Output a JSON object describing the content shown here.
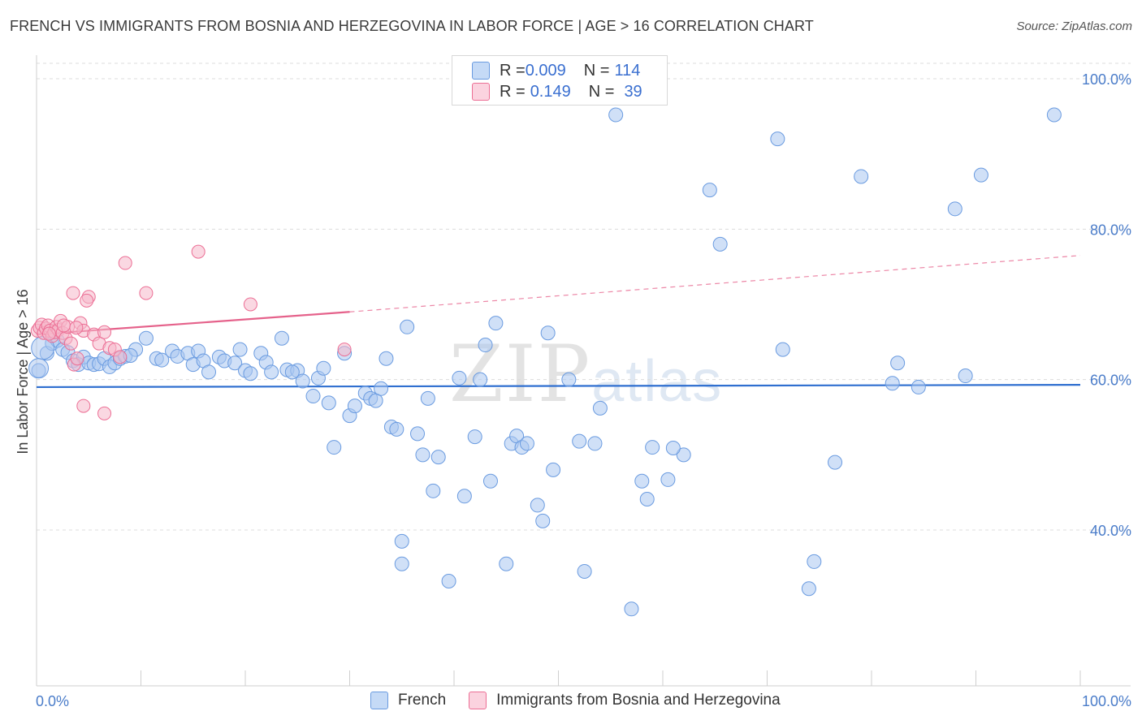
{
  "header": {
    "title": "FRENCH VS IMMIGRANTS FROM BOSNIA AND HERZEGOVINA IN LABOR FORCE | AGE > 16 CORRELATION CHART",
    "source": "Source: ZipAtlas.com"
  },
  "legend": {
    "rows": [
      {
        "r_label": "R = ",
        "r_value": "0.009",
        "n_label": "N = ",
        "n_value": "114",
        "color": "#a9c6f0"
      },
      {
        "r_label": "R = ",
        "r_value": "0.149",
        "n_label": "N = ",
        "n_value": "39",
        "color": "#f5b8cb"
      }
    ]
  },
  "bottom_legend": {
    "items": [
      {
        "label": "French",
        "color": "#a9c6f0"
      },
      {
        "label": "Immigrants from Bosnia and Herzegovina",
        "color": "#f5b8cb"
      }
    ]
  },
  "watermark": {
    "zip": "ZIP",
    "atlas": "atlas"
  },
  "chart_data": {
    "type": "scatter",
    "ylabel": "In Labor Force | Age > 16",
    "xlabel": "",
    "xlim": [
      0,
      100
    ],
    "ylim": [
      20,
      100
    ],
    "x_tick_labels": [
      "0.0%",
      "100.0%"
    ],
    "y_ticks": [
      40,
      60,
      80,
      100
    ],
    "y_tick_labels": [
      "40.0%",
      "60.0%",
      "80.0%",
      "100.0%"
    ],
    "grid": true,
    "colors": {
      "french": "#6a9be0",
      "french_fill": "#a9c6f0",
      "bosnia": "#ec6f95",
      "bosnia_fill": "#f5b8cb",
      "axis_text": "#4a7cc9"
    },
    "series": [
      {
        "name": "French",
        "trend": {
          "x0": 0,
          "y0": 59.0,
          "x1": 100,
          "y1": 59.3
        },
        "points": [
          [
            0.2,
            61.2
          ],
          [
            1.0,
            63.5
          ],
          [
            1.5,
            64.8
          ],
          [
            2.0,
            65.2
          ],
          [
            2.5,
            64.0
          ],
          [
            3.0,
            63.6
          ],
          [
            3.5,
            62.5
          ],
          [
            4.0,
            62.0
          ],
          [
            4.5,
            63.0
          ],
          [
            5.0,
            62.2
          ],
          [
            5.5,
            62.0
          ],
          [
            6.0,
            62.1
          ],
          [
            6.5,
            62.8
          ],
          [
            7.0,
            61.7
          ],
          [
            7.5,
            62.2
          ],
          [
            8.0,
            62.8
          ],
          [
            8.5,
            63.1
          ],
          [
            9.5,
            64.0
          ],
          [
            10.5,
            65.5
          ],
          [
            9.0,
            63.2
          ],
          [
            11.5,
            62.8
          ],
          [
            12.0,
            62.6
          ],
          [
            13.0,
            63.8
          ],
          [
            13.5,
            63.1
          ],
          [
            14.5,
            63.5
          ],
          [
            15.0,
            62.0
          ],
          [
            15.5,
            63.8
          ],
          [
            16.0,
            62.5
          ],
          [
            16.5,
            61.0
          ],
          [
            17.5,
            63.0
          ],
          [
            18.0,
            62.5
          ],
          [
            19.0,
            62.2
          ],
          [
            19.5,
            64.0
          ],
          [
            20.0,
            61.2
          ],
          [
            20.5,
            60.8
          ],
          [
            21.5,
            63.5
          ],
          [
            22.0,
            62.3
          ],
          [
            22.5,
            61.0
          ],
          [
            23.5,
            65.5
          ],
          [
            24.0,
            61.3
          ],
          [
            25.0,
            61.2
          ],
          [
            25.5,
            59.8
          ],
          [
            24.5,
            61.0
          ],
          [
            27.0,
            60.2
          ],
          [
            26.5,
            57.8
          ],
          [
            28.0,
            56.9
          ],
          [
            28.5,
            51.0
          ],
          [
            29.5,
            63.5
          ],
          [
            30.0,
            55.2
          ],
          [
            30.5,
            56.5
          ],
          [
            31.5,
            58.2
          ],
          [
            32.0,
            57.5
          ],
          [
            32.5,
            57.2
          ],
          [
            33.0,
            58.8
          ],
          [
            33.5,
            62.8
          ],
          [
            34.0,
            53.7
          ],
          [
            34.5,
            53.4
          ],
          [
            35.5,
            67.0
          ],
          [
            36.5,
            52.8
          ],
          [
            37.0,
            50.0
          ],
          [
            37.5,
            57.5
          ],
          [
            38.0,
            45.2
          ],
          [
            38.5,
            49.7
          ],
          [
            39.5,
            33.2
          ],
          [
            40.5,
            60.2
          ],
          [
            41.0,
            44.5
          ],
          [
            42.0,
            52.4
          ],
          [
            42.5,
            60.0
          ],
          [
            43.0,
            64.6
          ],
          [
            43.5,
            46.5
          ],
          [
            45.5,
            51.5
          ],
          [
            46.0,
            52.5
          ],
          [
            46.5,
            51.0
          ],
          [
            47.0,
            51.5
          ],
          [
            48.0,
            43.3
          ],
          [
            48.5,
            41.2
          ],
          [
            49.0,
            66.2
          ],
          [
            49.5,
            48.0
          ],
          [
            45.0,
            35.5
          ],
          [
            51.0,
            60.0
          ],
          [
            52.0,
            51.8
          ],
          [
            52.5,
            34.5
          ],
          [
            53.5,
            51.5
          ],
          [
            54.0,
            56.2
          ],
          [
            55.5,
            95.2
          ],
          [
            57.0,
            29.5
          ],
          [
            58.0,
            46.5
          ],
          [
            58.5,
            44.1
          ],
          [
            59.0,
            51.0
          ],
          [
            60.5,
            46.7
          ],
          [
            62.0,
            50.0
          ],
          [
            64.5,
            85.2
          ],
          [
            65.5,
            78.0
          ],
          [
            61.0,
            50.9
          ],
          [
            71.0,
            92.0
          ],
          [
            71.5,
            64.0
          ],
          [
            74.0,
            32.2
          ],
          [
            74.5,
            35.8
          ],
          [
            76.5,
            49.0
          ],
          [
            79.0,
            87.0
          ],
          [
            82.0,
            59.5
          ],
          [
            82.5,
            62.2
          ],
          [
            84.5,
            59.0
          ],
          [
            97.5,
            95.2
          ],
          [
            88.0,
            82.7
          ],
          [
            89.0,
            60.5
          ],
          [
            90.5,
            87.2
          ],
          [
            35.0,
            38.5
          ],
          [
            35.0,
            35.5
          ],
          [
            27.5,
            61.5
          ],
          [
            44.0,
            67.5
          ]
        ]
      },
      {
        "name": "Immigrants from Bosnia and Herzegovina",
        "trend": {
          "x0": 0,
          "y0": 66.0,
          "x1": 30,
          "y1": 69.0,
          "dashed_to": {
            "x": 100,
            "y": 76.5
          }
        },
        "points": [
          [
            0.1,
            66.5
          ],
          [
            0.3,
            66.9
          ],
          [
            0.5,
            67.3
          ],
          [
            0.7,
            66.2
          ],
          [
            0.9,
            66.8
          ],
          [
            1.1,
            67.2
          ],
          [
            1.3,
            66.5
          ],
          [
            1.5,
            65.8
          ],
          [
            1.7,
            66.3
          ],
          [
            1.9,
            67.0
          ],
          [
            2.1,
            66.6
          ],
          [
            2.3,
            67.8
          ],
          [
            2.5,
            66.2
          ],
          [
            2.8,
            65.5
          ],
          [
            3.0,
            67.0
          ],
          [
            3.3,
            64.8
          ],
          [
            3.6,
            62.0
          ],
          [
            3.9,
            62.8
          ],
          [
            4.2,
            67.5
          ],
          [
            4.5,
            66.5
          ],
          [
            5.0,
            71.0
          ],
          [
            4.8,
            70.5
          ],
          [
            5.5,
            66.0
          ],
          [
            6.0,
            64.8
          ],
          [
            6.5,
            66.3
          ],
          [
            7.0,
            64.2
          ],
          [
            7.5,
            64.0
          ],
          [
            8.0,
            63.0
          ],
          [
            8.5,
            75.5
          ],
          [
            10.5,
            71.5
          ],
          [
            3.5,
            71.5
          ],
          [
            15.5,
            77.0
          ],
          [
            20.5,
            70.0
          ],
          [
            29.5,
            64.0
          ],
          [
            4.5,
            56.5
          ],
          [
            6.5,
            55.5
          ],
          [
            1.2,
            66.1
          ],
          [
            2.6,
            67.2
          ],
          [
            3.8,
            66.9
          ]
        ]
      }
    ]
  }
}
